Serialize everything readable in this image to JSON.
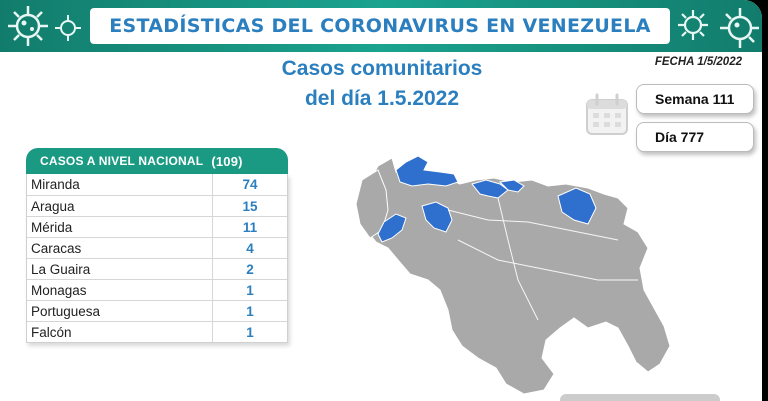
{
  "header": {
    "title": "ESTADÍSTICAS DEL CORONAVIRUS EN VENEZUELA",
    "date": "FECHA 1/5/2022"
  },
  "subtitle": {
    "line1": "Casos comunitarios",
    "line2": "del día 1.5.2022"
  },
  "counters": {
    "week": "Semana 111",
    "day": "Día 777"
  },
  "table": {
    "header_label": "CASOS A NIVEL NACIONAL",
    "header_total": "(109)",
    "rows": [
      {
        "name": "Miranda",
        "value": "74"
      },
      {
        "name": "Aragua",
        "value": "15"
      },
      {
        "name": "Mérida",
        "value": "11"
      },
      {
        "name": "Caracas",
        "value": "4"
      },
      {
        "name": "La Guaira",
        "value": "2"
      },
      {
        "name": "Monagas",
        "value": "1"
      },
      {
        "name": "Portuguesa",
        "value": "1"
      },
      {
        "name": "Falcón",
        "value": "1"
      }
    ]
  },
  "colors": {
    "accent_blue": "#2b7fbf",
    "banner_green": "#1aa38f",
    "map_gray": "#a9a9a9",
    "map_highlight": "#2f6fce"
  },
  "icons": [
    "virus-icon",
    "calendar-icon"
  ]
}
